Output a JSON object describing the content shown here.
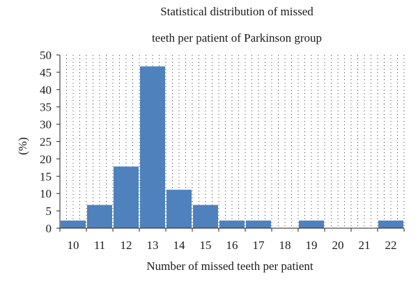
{
  "chart_data": {
    "type": "bar",
    "title_line1": "Statistical distribution of missed",
    "title_line2": "teeth per patient of Parkinson group",
    "xlabel": "Number of missed teeth per patient",
    "ylabel": "(%)",
    "categories": [
      "10",
      "11",
      "12",
      "13",
      "14",
      "15",
      "16",
      "17",
      "18",
      "19",
      "20",
      "21",
      "22"
    ],
    "values": [
      2.2,
      6.7,
      17.8,
      46.7,
      11.1,
      6.7,
      2.2,
      2.2,
      0,
      2.2,
      0,
      0,
      2.2
    ],
    "ylim": [
      0,
      50
    ],
    "yticks": [
      0,
      5,
      10,
      15,
      20,
      25,
      30,
      35,
      40,
      45,
      50
    ],
    "grid": "vertical dotted",
    "bar_color": "#4f81bd"
  }
}
